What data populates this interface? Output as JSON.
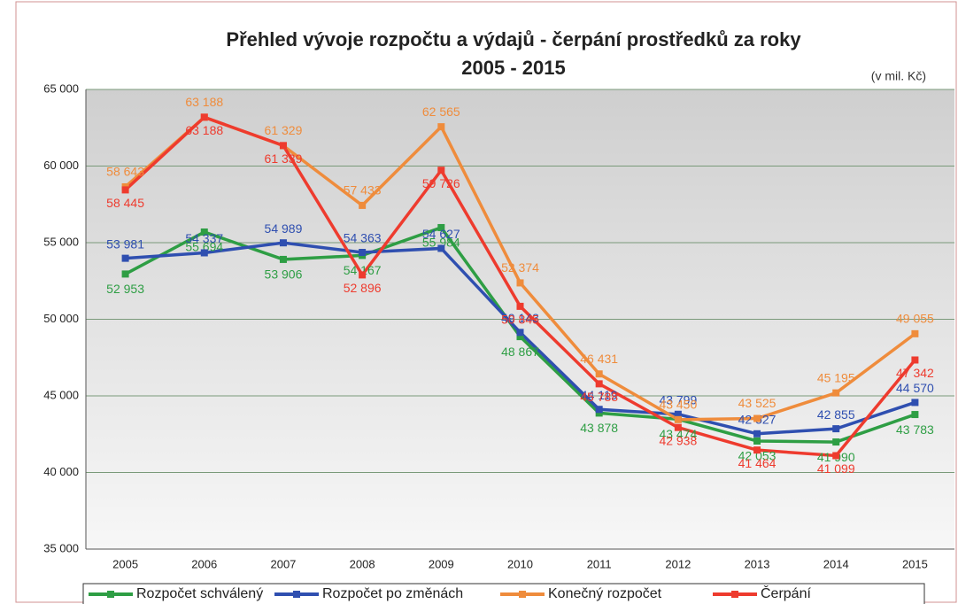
{
  "chart_data": {
    "type": "line",
    "title": [
      "Přehled vývoje rozpočtu a výdajů - čerpání prostředků za roky",
      "2005 - 2015"
    ],
    "subtitle": "(v mil. Kč)",
    "categories": [
      "2005",
      "2006",
      "2007",
      "2008",
      "2009",
      "2010",
      "2011",
      "2012",
      "2013",
      "2014",
      "2015"
    ],
    "series": [
      {
        "name": "Rozpočet schválený",
        "color": "#2e9e44",
        "values": [
          52953,
          55694,
          53906,
          54167,
          55984,
          48867,
          43878,
          43474,
          42053,
          41990,
          43783
        ],
        "value_labels": [
          "52 953",
          "55 694",
          "53 906",
          "54 167",
          "55 984",
          "48 867",
          "43 878",
          "43 474",
          "42 053",
          "41 990",
          "43 783"
        ]
      },
      {
        "name": "Rozpočet po změnách",
        "color": "#2f4fb0",
        "values": [
          53981,
          54337,
          54989,
          54363,
          54627,
          49143,
          44119,
          43799,
          42527,
          42855,
          44570
        ],
        "value_labels": [
          "53 981",
          "54 337",
          "54 989",
          "54 363",
          "54 627",
          "49 143",
          "44 119",
          "43 799",
          "42 527",
          "42 855",
          "44 570"
        ]
      },
      {
        "name": "Konečný rozpočet",
        "color": "#ef8c3c",
        "values": [
          58643,
          63188,
          61329,
          57433,
          62565,
          52374,
          46431,
          43450,
          43525,
          45195,
          49055
        ],
        "value_labels": [
          "58 643",
          "63 188",
          "61 329",
          "57 433",
          "62 565",
          "52 374",
          "46 431",
          "43 450",
          "43 525",
          "45 195",
          "49 055"
        ]
      },
      {
        "name": "Čerpání",
        "color": "#ee3b2e",
        "values": [
          58445,
          63188,
          61339,
          52896,
          59726,
          50845,
          45788,
          42938,
          41464,
          41099,
          47342
        ],
        "value_labels": [
          "58 445",
          "63 188",
          "61 339",
          "52 896",
          "59 726",
          "50 845",
          "45 788",
          "42 938",
          "41 464",
          "41 099",
          "47 342"
        ]
      }
    ],
    "ylim": [
      35000,
      65000
    ],
    "yticks": [
      {
        "value": 35000,
        "label": "35 000"
      },
      {
        "value": 40000,
        "label": "40 000"
      },
      {
        "value": 45000,
        "label": "45 000"
      },
      {
        "value": 50000,
        "label": "50 000"
      },
      {
        "value": 55000,
        "label": "55 000"
      },
      {
        "value": 60000,
        "label": "60 000"
      },
      {
        "value": 65000,
        "label": "65 000"
      }
    ],
    "grid": true,
    "legend": "bottom"
  }
}
